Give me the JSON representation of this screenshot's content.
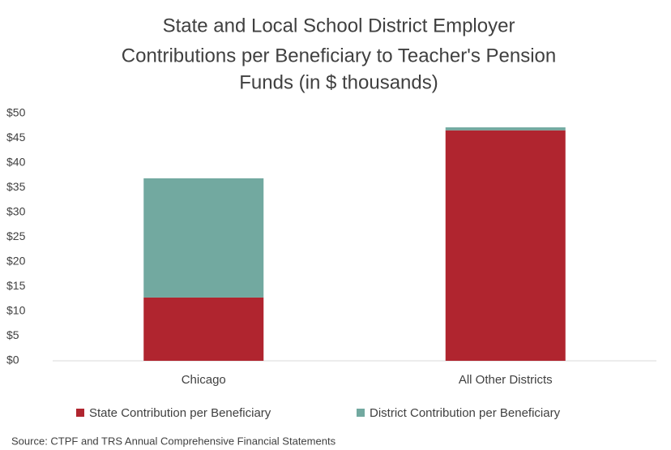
{
  "chart_data": {
    "type": "stacked_bar",
    "title": [
      "State and Local School District Employer",
      "Contributions per Beneficiary to Teacher's Pension",
      "Funds (in $ thousands)"
    ],
    "categories": [
      "Chicago",
      "All Other Districts"
    ],
    "series": [
      {
        "name": "State Contribution per Beneficiary",
        "color": "#b0252f",
        "values": [
          12.8,
          46.6
        ]
      },
      {
        "name": "District Contribution per Beneficiary",
        "color": "#72a9a0",
        "values": [
          24.1,
          0.6
        ]
      }
    ],
    "ylim": [
      0,
      50
    ],
    "yticks": [
      {
        "value": 0,
        "label": "$0"
      },
      {
        "value": 5,
        "label": "$5"
      },
      {
        "value": 10,
        "label": "$10"
      },
      {
        "value": 15,
        "label": "$15"
      },
      {
        "value": 20,
        "label": "$20"
      },
      {
        "value": 25,
        "label": "$25"
      },
      {
        "value": 30,
        "label": "$30"
      },
      {
        "value": 35,
        "label": "$35"
      },
      {
        "value": 40,
        "label": "$40"
      },
      {
        "value": 45,
        "label": "$45"
      },
      {
        "value": 50,
        "label": "$50"
      }
    ],
    "legend": "bottom",
    "source": "Source: CTPF and TRS Annual Comprehensive Financial Statements"
  }
}
